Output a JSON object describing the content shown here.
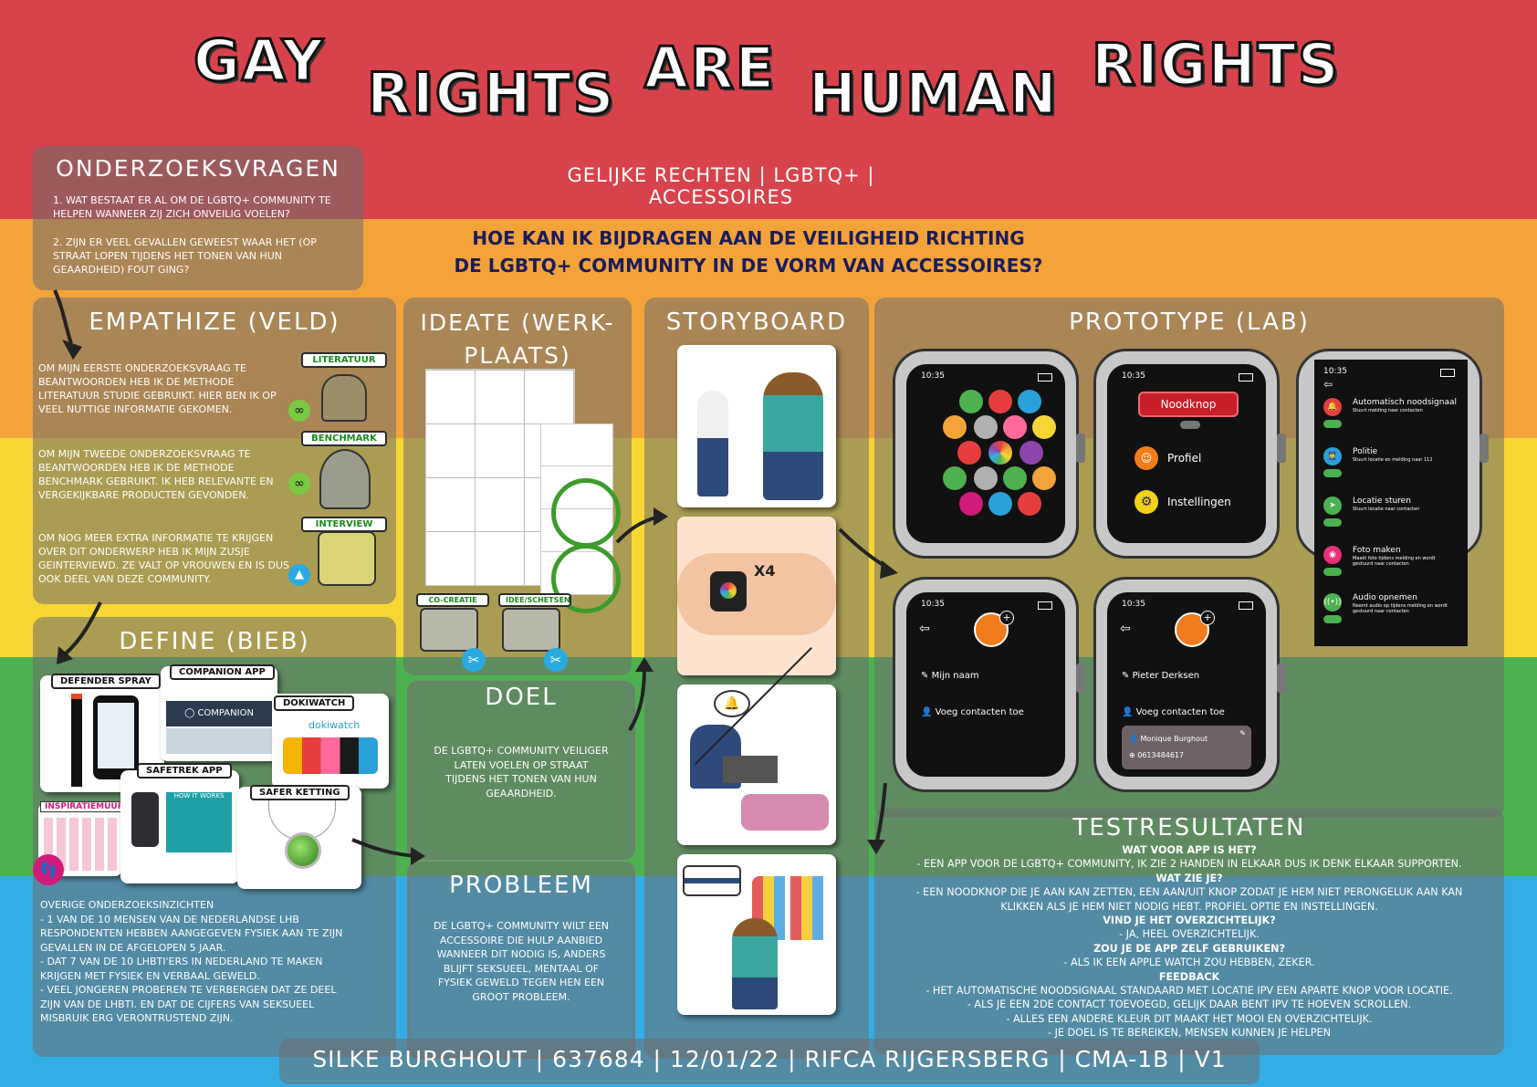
{
  "title_words": [
    "GAY",
    "RIGHTS",
    "ARE",
    "HUMAN",
    "RIGHTS"
  ],
  "subtitle": "GELIJKE RECHTEN | LGBTQ+ | ACCESSOIRES",
  "main_question_line1": "HOE KAN IK BIJDRAGEN AAN DE VEILIGHEID RICHTING",
  "main_question_line2": "DE LGBTQ+ COMMUNITY IN DE VORM VAN ACCESSOIRES?",
  "onderzoeksvragen": {
    "title": "ONDERZOEKSVRAGEN",
    "q1": "1. WAT BESTAAT ER AL OM DE LGBTQ+ COMMUNITY TE HELPEN WANNEER ZIJ ZICH ONVEILIG VOELEN?",
    "q2": "2. ZIJN ER VEEL GEVALLEN GEWEEST WAAR HET (OP STRAAT LOPEN TIJDENS HET TONEN VAN HUN GEAARDHEID) FOUT GING?"
  },
  "empathize": {
    "title": "EMPATHIZE (VELD)",
    "tags": [
      "LITERATUUR",
      "BENCHMARK",
      "INTERVIEW"
    ],
    "p1": "OM MIJN EERSTE ONDERZOEKSVRAAG TE BEANTWOORDEN HEB IK DE METHODE LITERATUUR STUDIE GEBRUIKT. HIER BEN IK OP VEEL NUTTIGE INFORMATIE GEKOMEN.",
    "p2": "OM MIJN TWEEDE ONDERZOEKSVRAAG TE BEANTWOORDEN HEB IK DE METHODE BENCHMARK GEBRUIKT. IK HEB RELEVANTE EN VERGEKIJKBARE PRODUCTEN GEVONDEN.",
    "p3": "OM NOG MEER EXTRA INFORMATIE TE KRIJGEN OVER DIT ONDERWERP HEB IK MIJN ZUSJE GEINTERVIEWD. ZE VALT OP VROUWEN EN IS DUS OOK DEEL VAN DEZE COMMUNITY."
  },
  "define": {
    "title": "DEFINE (BIEB)",
    "cards": [
      "DEFENDER SPRAY",
      "COMPANION APP",
      "DOKIWATCH",
      "SAFETREK APP",
      "SAFER KETTING"
    ],
    "inspiratie": "INSPIRATIEMUUR",
    "companion_logo": "COMPANION",
    "dokiwatch_logo": "dokiwatch",
    "howitworks": "HOW IT WORKS",
    "insights_title": "OVERIGE ONDERZOEKSINZICHTEN",
    "insight1": "- 1 VAN DE 10 MENSEN VAN DE NEDERLANDSE LHB RESPONDENTEN HEBBEN AANGEGEVEN FYSIEK AAN TE ZIJN GEVALLEN IN DE AFGELOPEN 5 JAAR.",
    "insight2": "- DAT 7 VAN DE 10 LHBTI'ERS IN NEDERLAND TE MAKEN KRIJGEN MET FYSIEK EN VERBAAL GEWELD.",
    "insight3": "- VEEL JONGEREN PROBEREN TE VERBERGEN DAT ZE DEEL ZIJN VAN DE LHBTI. EN DAT DE CIJFERS VAN SEKSUEEL MISBRUIK ERG VERONTRUSTEND ZIJN."
  },
  "ideate": {
    "title_line1": "IDEATE (WERK-",
    "title_line2": "PLAATS)",
    "tags": [
      "CO-CREATIE",
      "IDEE/SCHETSEN"
    ]
  },
  "doel": {
    "title": "DOEL",
    "text": "DE LGBTQ+ COMMUNITY VEILIGER LATEN VOELEN OP STRAAT TIJDENS HET TONEN VAN HUN GEAARDHEID."
  },
  "probleem": {
    "title": "PROBLEEM",
    "text": "DE LGBTQ+ COMMUNITY WILT EEN ACCESSOIRE DIE HULP AANBIED WANNEER DIT NODIG IS, ANDERS BLIJFT SEKSUEEL, MENTAAL OF FYSIEK GEWELD TEGEN HEN EEN GROOT PROBLEEM."
  },
  "storyboard": {
    "title": "STORYBOARD",
    "x4": "X4"
  },
  "prototype": {
    "title": "PROTOTYPE (LAB)",
    "time": "10:35",
    "noodknop": "Noodknop",
    "profiel": "Profiel",
    "instellingen": "Instellingen",
    "features": [
      {
        "title": "Automatisch noodsignaal",
        "sub": "Stuurt melding naar contacten"
      },
      {
        "title": "Politie",
        "sub": "Stuurt locatie en melding naar 112"
      },
      {
        "title": "Locatie sturen",
        "sub": "Stuurt locatie naar contacten"
      },
      {
        "title": "Foto maken",
        "sub": "Maakt foto tijdens melding en wordt gestuurd naar contacten"
      },
      {
        "title": "Audio opnemen",
        "sub": "Neemt audio op tijdens melding en wordt gestuurd naar contacten"
      }
    ],
    "mijn_naam": "Mijn naam",
    "voeg_contacten": "Voeg contacten toe",
    "pieter": "Pieter Derksen",
    "contact_name": "Monique Burghout",
    "contact_phone": "0613484617"
  },
  "testresultaten": {
    "title": "TESTRESULTATEN",
    "lines": [
      {
        "bold": true,
        "text": "WAT VOOR APP IS HET?"
      },
      {
        "bold": false,
        "text": "- EEN APP VOOR DE LGBTQ+ COMMUNITY, IK ZIE 2 HANDEN IN ELKAAR DUS IK DENK ELKAAR SUPPORTEN."
      },
      {
        "bold": true,
        "text": "WAT ZIE JE?"
      },
      {
        "bold": false,
        "text": "- EEN NOODKNOP DIE JE AAN KAN ZETTEN, EEN AAN/UIT KNOP ZODAT JE HEM NIET PERONGELUK AAN KAN"
      },
      {
        "bold": false,
        "text": "KLIKKEN ALS JE HEM NIET NODIG HEBT. PROFIEL OPTIE EN INSTELLINGEN."
      },
      {
        "bold": true,
        "text": "VIND JE HET OVERZICHTELIJK?"
      },
      {
        "bold": false,
        "text": "- JA, HEEL OVERZICHTELIJK."
      },
      {
        "bold": true,
        "text": "ZOU JE DE APP ZELF GEBRUIKEN?"
      },
      {
        "bold": false,
        "text": "- ALS IK EEN APPLE WATCH ZOU HEBBEN, ZEKER."
      },
      {
        "bold": true,
        "text": "FEEDBACK"
      },
      {
        "bold": false,
        "text": "- HET AUTOMATISCHE NOODSIGNAAL STANDAARD MET LOCATIE IPV EEN APARTE KNOP VOOR LOCATIE."
      },
      {
        "bold": false,
        "text": "- ALS JE EEN 2DE CONTACT TOEVOEGD, GELIJK DAAR BENT IPV TE HOEVEN SCROLLEN."
      },
      {
        "bold": false,
        "text": "- ALLES EEN ANDERE KLEUR DIT MAAKT HET MOOI EN OVERZICHTELIJK."
      },
      {
        "bold": false,
        "text": "- JE DOEL IS TE BEREIKEN, MENSEN KUNNEN JE HELPEN"
      }
    ]
  },
  "footer": "SILKE BURGHOUT | 637684 | 12/01/22 | RIFCA RIJGERSBERG | CMA-1B | V1",
  "colors": {
    "red": "#d8434b",
    "orange": "#f3a33a",
    "yellow": "#f7d634",
    "green": "#4db150",
    "blue": "#34ade7"
  }
}
